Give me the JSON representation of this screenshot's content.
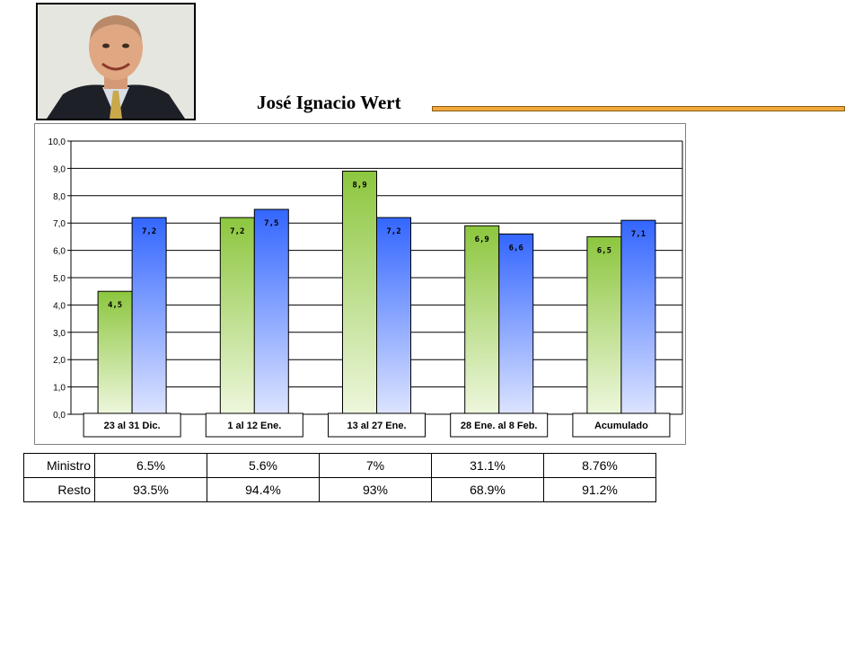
{
  "header": {
    "name": "José Ignacio Wert",
    "photo_icon": "portrait-photo",
    "accent_color": "#f2a93b"
  },
  "chart_data": {
    "type": "bar",
    "categories": [
      "23 al 31 Dic.",
      "1 al 12 Ene.",
      "13 al 27 Ene.",
      "28 Ene. al 8 Feb.",
      "Acumulado"
    ],
    "series": [
      {
        "values": [
          4.5,
          7.2,
          8.9,
          6.9,
          6.5
        ],
        "labels": [
          "4,5",
          "7,2",
          "8,9",
          "6,9",
          "6,5"
        ],
        "color": "#8cc63e"
      },
      {
        "values": [
          7.2,
          7.5,
          7.2,
          6.6,
          7.1
        ],
        "labels": [
          "7,2",
          "7,5",
          "7,2",
          "6,6",
          "7,1"
        ],
        "color": "#3366ff"
      }
    ],
    "ylim": [
      0,
      10
    ],
    "yticks": [
      "0,0",
      "1,0",
      "2,0",
      "3,0",
      "4,0",
      "5,0",
      "6,0",
      "7,0",
      "8,0",
      "9,0",
      "10,0"
    ],
    "grid": true
  },
  "table": {
    "rows": [
      {
        "label": "Ministro",
        "cells": [
          "6.5%",
          "5.6%",
          "7%",
          "31.1%",
          "8.76%"
        ]
      },
      {
        "label": "Resto",
        "cells": [
          "93.5%",
          "94.4%",
          "93%",
          "68.9%",
          "91.2%"
        ]
      }
    ]
  }
}
